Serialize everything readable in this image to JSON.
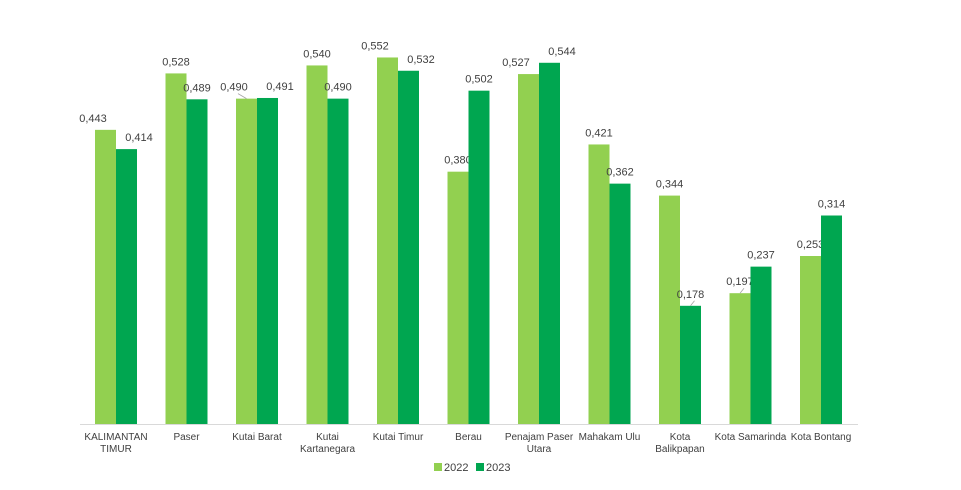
{
  "chart_data": {
    "type": "bar",
    "categories": [
      [
        "KALIMANTAN",
        "TIMUR"
      ],
      [
        "Paser"
      ],
      [
        "Kutai Barat"
      ],
      [
        "Kutai",
        "Kartanegara"
      ],
      [
        "Kutai Timur"
      ],
      [
        "Berau"
      ],
      [
        "Penajam Paser",
        "Utara"
      ],
      [
        "Mahakam Ulu"
      ],
      [
        "Kota",
        "Balikpapan"
      ],
      [
        "Kota Samarinda"
      ],
      [
        "Kota Bontang"
      ]
    ],
    "series": [
      {
        "name": "2022",
        "color": "#92d050",
        "values": [
          0.443,
          0.528,
          0.49,
          0.54,
          0.552,
          0.38,
          0.527,
          0.421,
          0.344,
          0.197,
          0.253
        ],
        "labels": [
          "0,443",
          "0,528",
          "0,490",
          "0,540",
          "0,552",
          "0,380",
          "0,527",
          "0,421",
          "0,344",
          "0,197",
          "0,253"
        ]
      },
      {
        "name": "2023",
        "color": "#00a650",
        "values": [
          0.414,
          0.489,
          0.491,
          0.49,
          0.532,
          0.502,
          0.544,
          0.362,
          0.178,
          0.237,
          0.314
        ],
        "labels": [
          "0,414",
          "0,489",
          "0,491",
          "0,490",
          "0,532",
          "0,502",
          "0,544",
          "0,362",
          "0,178",
          "0,237",
          "0,314"
        ]
      }
    ],
    "title": "",
    "xlabel": "",
    "ylabel": "",
    "ylim": [
      0,
      0.6
    ],
    "grid": false,
    "legend_position": "bottom-center"
  }
}
